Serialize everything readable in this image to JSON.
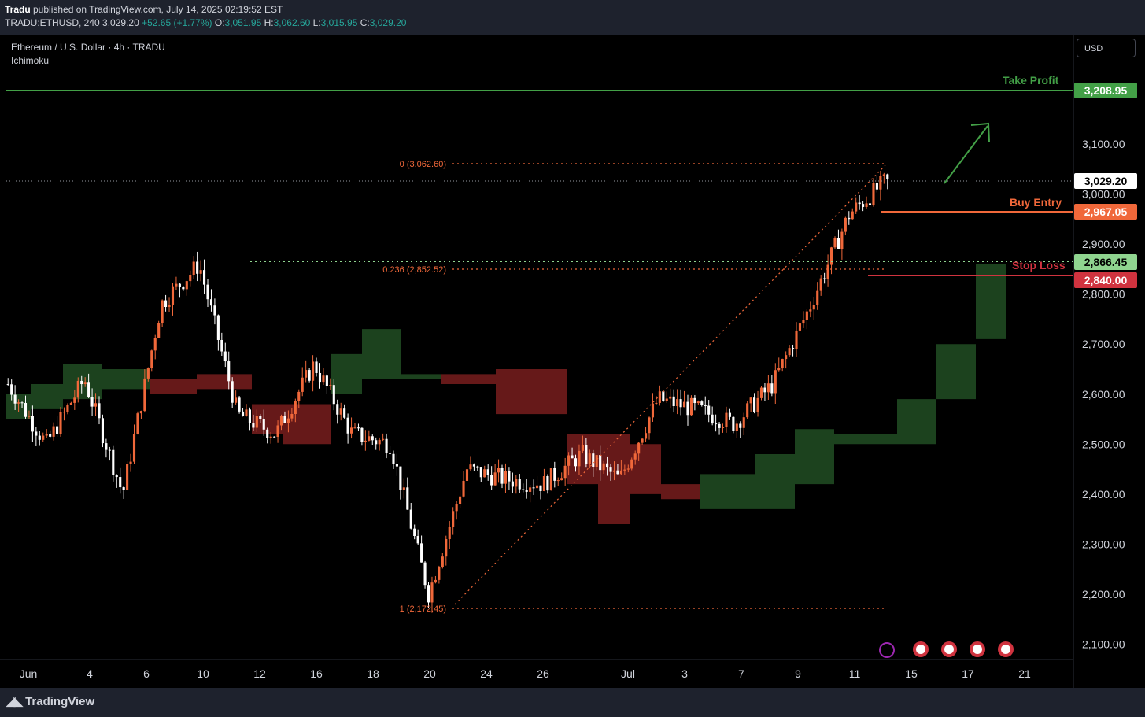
{
  "header": {
    "author": "Tradu",
    "published_text": " published on TradingView.com, July 14, 2025 02:19:52 EST",
    "symbol": "TRADU:ETHUSD, 240",
    "last": "3,029.20",
    "change": "+52.65 (+1.77%)",
    "o_label": "O:",
    "o": "3,051.95",
    "h_label": "H:",
    "h": "3,062.60",
    "l_label": "L:",
    "l": "3,015.95",
    "c_label": "C:",
    "c": "3,029.20"
  },
  "legend": {
    "title": "Ethereum / U.S. Dollar · 4h · TRADU",
    "indicator": "Ichimoku"
  },
  "currency_button": "USD",
  "price_axis": {
    "ticks": [
      "3,100.00",
      "3,000.00",
      "2,900.00",
      "2,800.00",
      "2,700.00",
      "2,600.00",
      "2,500.00",
      "2,400.00",
      "2,300.00",
      "2,200.00",
      "2,100.00"
    ]
  },
  "time_axis": {
    "labels": [
      "Jun",
      "4",
      "6",
      "10",
      "12",
      "16",
      "18",
      "20",
      "24",
      "26",
      "Jul",
      "3",
      "7",
      "9",
      "11",
      "15",
      "17",
      "21"
    ]
  },
  "annotations": {
    "take_profit_label": "Take Profit",
    "take_profit_price": "3,208.95",
    "current_price": "3,029.20",
    "buy_entry_label": "Buy Entry",
    "buy_entry_price": "2,967.05",
    "stop_loss_label": "Stop Loss",
    "stop_loss_price": "2,840.00",
    "support_price": "2,866.45",
    "fib_0": "0 (3,062.60)",
    "fib_0236": "0.236 (2,852.52)",
    "fib_1": "1 (2,172.45)"
  },
  "colors": {
    "up": "#f0683a",
    "down": "#ffffff",
    "take_profit": "#43a047",
    "buy_entry": "#f0683a",
    "stop_loss": "#d0333f",
    "support": "#8fd48f",
    "cloud_bull": "#1e4620",
    "cloud_bear": "#6b1a1a",
    "fib": "#f0683a"
  },
  "footer": {
    "brand": "TradingView"
  },
  "chart_data": {
    "type": "candlestick",
    "symbol": "ETHUSD",
    "timeframe": "4h",
    "ylim": [
      2070,
      3270
    ],
    "approx_close_path": [
      {
        "date": "Jun 1",
        "price": 2620
      },
      {
        "date": "Jun 3",
        "price": 2500
      },
      {
        "date": "Jun 5",
        "price": 2630
      },
      {
        "date": "Jun 6",
        "price": 2400
      },
      {
        "date": "Jun 10",
        "price": 2780
      },
      {
        "date": "Jun 11",
        "price": 2860
      },
      {
        "date": "Jun 13",
        "price": 2560
      },
      {
        "date": "Jun 15",
        "price": 2520
      },
      {
        "date": "Jun 17",
        "price": 2660
      },
      {
        "date": "Jun 19",
        "price": 2520
      },
      {
        "date": "Jun 21",
        "price": 2500
      },
      {
        "date": "Jun 22",
        "price": 2200
      },
      {
        "date": "Jun 24",
        "price": 2450
      },
      {
        "date": "Jun 26",
        "price": 2430
      },
      {
        "date": "Jun 29",
        "price": 2420
      },
      {
        "date": "Jul 1",
        "price": 2480
      },
      {
        "date": "Jul 2",
        "price": 2430
      },
      {
        "date": "Jul 3",
        "price": 2590
      },
      {
        "date": "Jul 5",
        "price": 2570
      },
      {
        "date": "Jul 7",
        "price": 2540
      },
      {
        "date": "Jul 9",
        "price": 2620
      },
      {
        "date": "Jul 10",
        "price": 2780
      },
      {
        "date": "Jul 11",
        "price": 2960
      },
      {
        "date": "Jul 13",
        "price": 3029.2
      }
    ]
  }
}
